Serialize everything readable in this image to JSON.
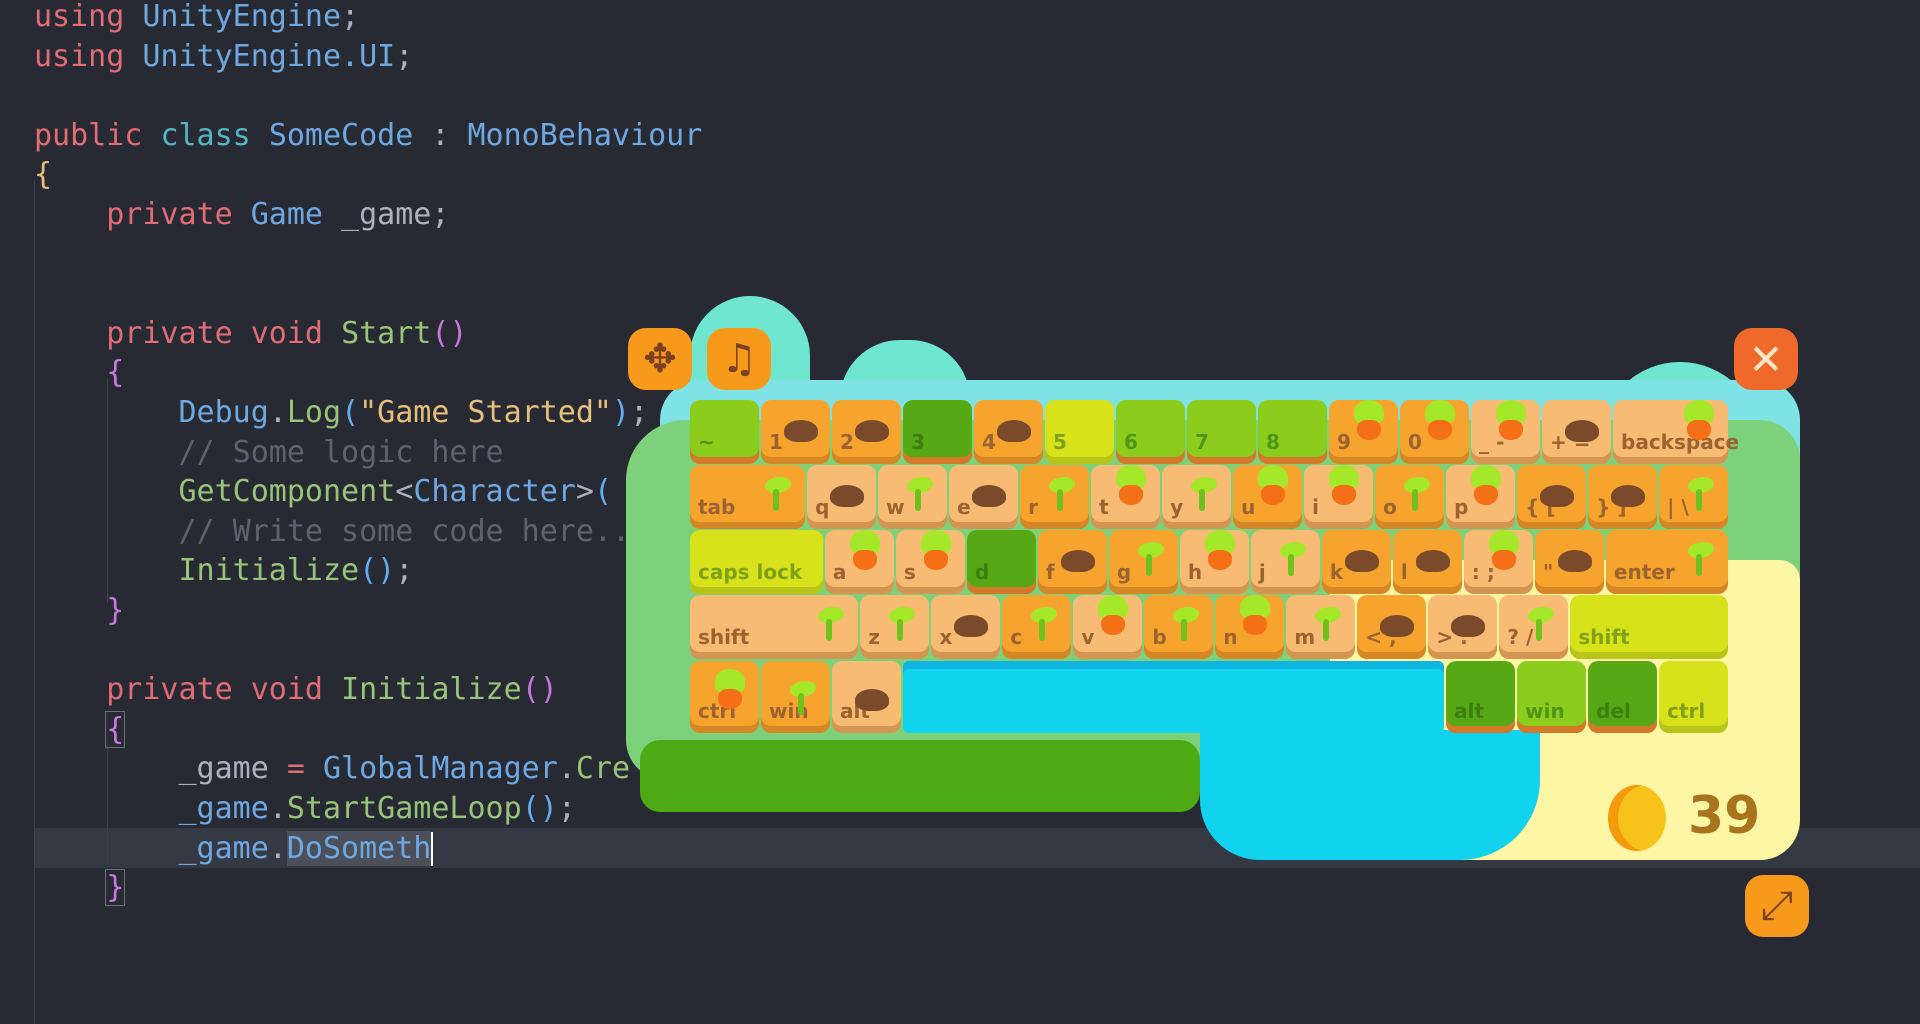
{
  "editor": {
    "lines": [
      {
        "n": 0,
        "indent": 0,
        "tokens": [
          [
            "using",
            "kw"
          ],
          [
            " ",
            ""
          ],
          [
            "UnityEngine",
            "type"
          ],
          [
            ";",
            "p"
          ]
        ]
      },
      {
        "n": 1,
        "indent": 0,
        "tokens": [
          [
            "using",
            "kw"
          ],
          [
            " ",
            ""
          ],
          [
            "UnityEngine.UI",
            "type"
          ],
          [
            ";",
            "p"
          ]
        ]
      },
      {
        "n": 3,
        "indent": 0,
        "tokens": [
          [
            "public",
            "kw"
          ],
          [
            " ",
            ""
          ],
          [
            "class",
            "teal"
          ],
          [
            " ",
            ""
          ],
          [
            "SomeCode",
            "type"
          ],
          [
            " : ",
            "p"
          ],
          [
            "MonoBehaviour",
            "type"
          ]
        ]
      },
      {
        "n": 4,
        "indent": 0,
        "tokens": [
          [
            "{",
            "yb"
          ]
        ]
      },
      {
        "n": 5,
        "indent": 1,
        "tokens": [
          [
            "private",
            "kw"
          ],
          [
            " ",
            ""
          ],
          [
            "Game",
            "type"
          ],
          [
            " _game;",
            "p"
          ]
        ]
      },
      {
        "n": 8,
        "indent": 1,
        "tokens": [
          [
            "private",
            "kw"
          ],
          [
            " ",
            ""
          ],
          [
            "void",
            "kw"
          ],
          [
            " ",
            ""
          ],
          [
            "Start",
            "fn"
          ],
          [
            "()",
            "pp"
          ]
        ]
      },
      {
        "n": 9,
        "indent": 1,
        "tokens": [
          [
            "{",
            "pp"
          ]
        ]
      },
      {
        "n": 10,
        "indent": 2,
        "tokens": [
          [
            "Debug",
            "type"
          ],
          [
            ".",
            "p"
          ],
          [
            "Log",
            "fn"
          ],
          [
            "(",
            "pb"
          ],
          [
            "\"Game Started\"",
            "str"
          ],
          [
            ")",
            "pb"
          ],
          [
            ";",
            "p"
          ]
        ]
      },
      {
        "n": 11,
        "indent": 2,
        "tokens": [
          [
            "// Some logic here",
            "cm"
          ]
        ]
      },
      {
        "n": 12,
        "indent": 2,
        "tokens": [
          [
            "GetComponent",
            "fn"
          ],
          [
            "<",
            "p"
          ],
          [
            "Character",
            "type"
          ],
          [
            ">",
            "p"
          ],
          [
            "(",
            "pb"
          ]
        ]
      },
      {
        "n": 13,
        "indent": 2,
        "tokens": [
          [
            "// Write some code here...",
            "cm"
          ]
        ]
      },
      {
        "n": 14,
        "indent": 2,
        "tokens": [
          [
            "Initialize",
            "fn"
          ],
          [
            "()",
            "pb"
          ],
          [
            ";",
            "p"
          ]
        ]
      },
      {
        "n": 15,
        "indent": 1,
        "tokens": [
          [
            "}",
            "pp"
          ]
        ]
      },
      {
        "n": 17,
        "indent": 1,
        "tokens": [
          [
            "private",
            "kw"
          ],
          [
            " ",
            ""
          ],
          [
            "void",
            "kw"
          ],
          [
            " ",
            ""
          ],
          [
            "Initialize",
            "fn"
          ],
          [
            "()",
            "pp"
          ]
        ]
      },
      {
        "n": 18,
        "indent": 1,
        "tokens": [
          [
            "{",
            "pp box"
          ]
        ]
      },
      {
        "n": 19,
        "indent": 2,
        "tokens": [
          [
            "_game",
            "p"
          ],
          [
            " = ",
            "kw"
          ],
          [
            "GlobalManager",
            "type"
          ],
          [
            ".",
            "p"
          ],
          [
            "Cre",
            "fn"
          ]
        ]
      },
      {
        "n": 20,
        "indent": 2,
        "tokens": [
          [
            "_game",
            "type"
          ],
          [
            ".",
            "p"
          ],
          [
            "StartGameLoop",
            "fn"
          ],
          [
            "()",
            "pb"
          ],
          [
            ";",
            "p"
          ]
        ]
      },
      {
        "n": 21,
        "indent": 2,
        "tokens": [
          [
            "_game",
            "type"
          ],
          [
            ".",
            "p"
          ],
          [
            "DoSometh",
            "type sel"
          ]
        ]
      },
      {
        "n": 22,
        "indent": 1,
        "tokens": [
          [
            "}",
            "pp box"
          ]
        ]
      }
    ],
    "cursor_line": 21
  },
  "game": {
    "buttons": {
      "move": "move-icon",
      "music": "music-note-icon",
      "close": "close-icon",
      "expand": "expand-icon"
    },
    "icons": {
      "move": "✥",
      "music": "♫",
      "close": "✕",
      "expand": "⤢"
    },
    "coins": "39",
    "keyboard": [
      [
        [
          "~",
          "green",
          ""
        ],
        [
          "1",
          "orange",
          "mole"
        ],
        [
          "2",
          "orange",
          "mole"
        ],
        [
          "3",
          "darkgreen",
          ""
        ],
        [
          "4",
          "orange",
          "mole"
        ],
        [
          "5",
          "yellow",
          ""
        ],
        [
          "6",
          "green",
          ""
        ],
        [
          "7",
          "green",
          ""
        ],
        [
          "8",
          "green",
          ""
        ],
        [
          "9",
          "orange",
          "carrot"
        ],
        [
          "0",
          "orange",
          "carrot"
        ],
        [
          "_ -",
          "light",
          "carrot"
        ],
        [
          "+ =",
          "light",
          "mole"
        ],
        [
          "backspace",
          "light",
          "carrot"
        ]
      ],
      [
        [
          "tab",
          "orange",
          "sprout"
        ],
        [
          "q",
          "light",
          "mole"
        ],
        [
          "w",
          "light",
          "sprout"
        ],
        [
          "e",
          "light",
          "mole"
        ],
        [
          "r",
          "orange",
          "sprout"
        ],
        [
          "t",
          "light",
          "carrot"
        ],
        [
          "y",
          "light",
          "sprout"
        ],
        [
          "u",
          "orange",
          "carrot"
        ],
        [
          "i",
          "light",
          "carrot"
        ],
        [
          "o",
          "orange",
          "sprout"
        ],
        [
          "p",
          "light",
          "carrot"
        ],
        [
          "{ [",
          "orange",
          "mole"
        ],
        [
          "} ]",
          "orange",
          "mole"
        ],
        [
          "| \\",
          "orange",
          "sprout"
        ]
      ],
      [
        [
          "caps lock",
          "yellow",
          ""
        ],
        [
          "a",
          "light",
          "carrot"
        ],
        [
          "s",
          "light",
          "carrot"
        ],
        [
          "d",
          "darkgreen",
          ""
        ],
        [
          "f",
          "orange",
          "mole"
        ],
        [
          "g",
          "orange",
          "sprout"
        ],
        [
          "h",
          "light",
          "carrot"
        ],
        [
          "j",
          "light",
          "sprout"
        ],
        [
          "k",
          "orange",
          "mole"
        ],
        [
          "l",
          "orange",
          "mole"
        ],
        [
          ": ;",
          "light",
          "carrot"
        ],
        [
          "\" '",
          "orange",
          "mole"
        ],
        [
          "enter",
          "orange",
          "sprout"
        ]
      ],
      [
        [
          "shift",
          "light",
          "sprout"
        ],
        [
          "z",
          "light",
          "sprout"
        ],
        [
          "x",
          "light",
          "mole"
        ],
        [
          "c",
          "orange",
          "sprout"
        ],
        [
          "v",
          "light",
          "carrot"
        ],
        [
          "b",
          "orange",
          "sprout"
        ],
        [
          "n",
          "orange",
          "carrot"
        ],
        [
          "m",
          "light",
          "sprout"
        ],
        [
          "< ,",
          "orange",
          "mole"
        ],
        [
          "> .",
          "light",
          "mole"
        ],
        [
          "? /",
          "light",
          "sprout"
        ],
        [
          "shift",
          "yellow",
          ""
        ]
      ],
      [
        [
          "ctrl",
          "orange",
          "carrot"
        ],
        [
          "win",
          "orange",
          "sprout"
        ],
        [
          "alt",
          "light",
          "mole"
        ],
        [
          "",
          "water",
          ""
        ],
        [
          "alt",
          "darkgreen",
          ""
        ],
        [
          "win",
          "green",
          ""
        ],
        [
          "del",
          "darkgreen",
          ""
        ],
        [
          "ctrl",
          "yellow",
          ""
        ]
      ]
    ]
  }
}
